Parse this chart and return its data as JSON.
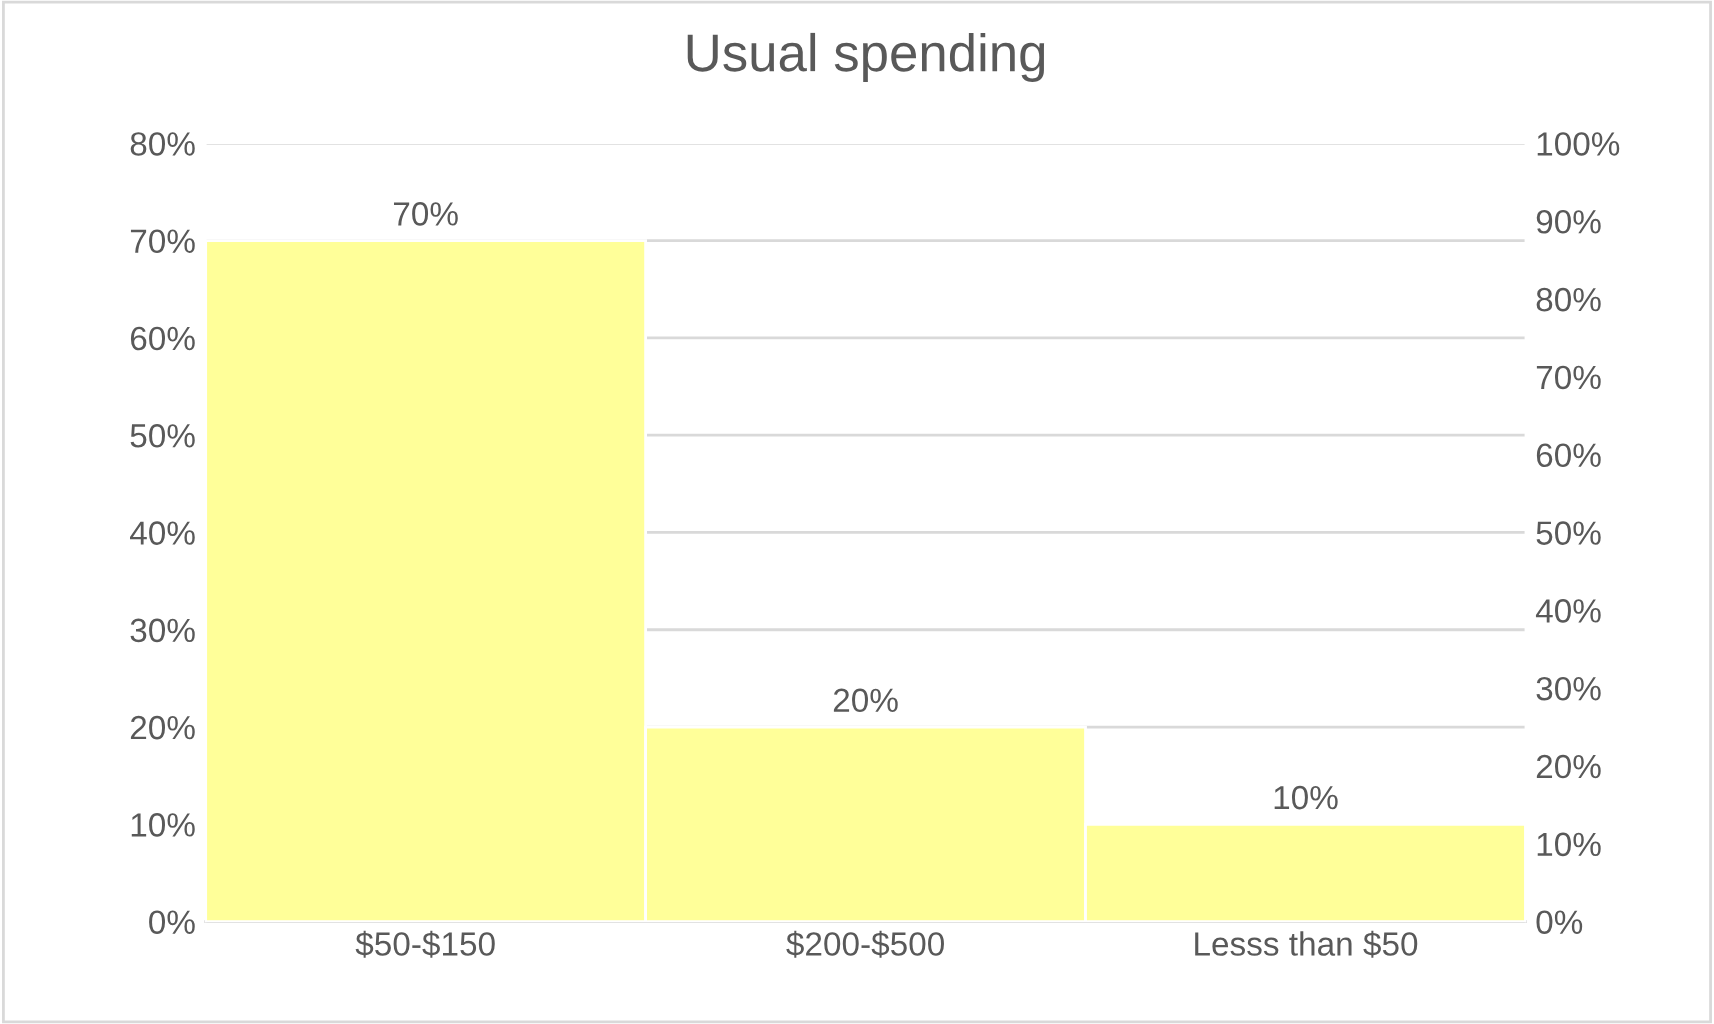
{
  "chart_data": {
    "type": "bar",
    "title": "Usual spending",
    "categories": [
      "$50-$150",
      "$200-$500",
      "Lesss than $50"
    ],
    "series": [
      {
        "color": "#ffff99",
        "values": [
          70,
          20,
          10
        ],
        "value_labels": [
          "70%",
          "20%",
          "10%"
        ]
      }
    ],
    "ylim": [
      0,
      80
    ],
    "yticks": [
      {
        "value": 0,
        "label": "0%"
      },
      {
        "value": 10,
        "label": "10%"
      },
      {
        "value": 20,
        "label": "20%"
      },
      {
        "value": 30,
        "label": "30%"
      },
      {
        "value": 40,
        "label": "40%"
      },
      {
        "value": 50,
        "label": "50%"
      },
      {
        "value": 60,
        "label": "60%"
      },
      {
        "value": 70,
        "label": "70%"
      },
      {
        "value": 80,
        "label": "80%"
      }
    ],
    "y2lim": [
      0,
      100
    ],
    "y2ticks": [
      {
        "value": 0,
        "label": "0%"
      },
      {
        "value": 10,
        "label": "10%"
      },
      {
        "value": 20,
        "label": "20%"
      },
      {
        "value": 30,
        "label": "30%"
      },
      {
        "value": 40,
        "label": "40%"
      },
      {
        "value": 50,
        "label": "50%"
      },
      {
        "value": 60,
        "label": "60%"
      },
      {
        "value": 70,
        "label": "70%"
      },
      {
        "value": 80,
        "label": "80%"
      },
      {
        "value": 90,
        "label": "90%"
      },
      {
        "value": 100,
        "label": "100%"
      }
    ],
    "grid": "y",
    "legend": false
  }
}
